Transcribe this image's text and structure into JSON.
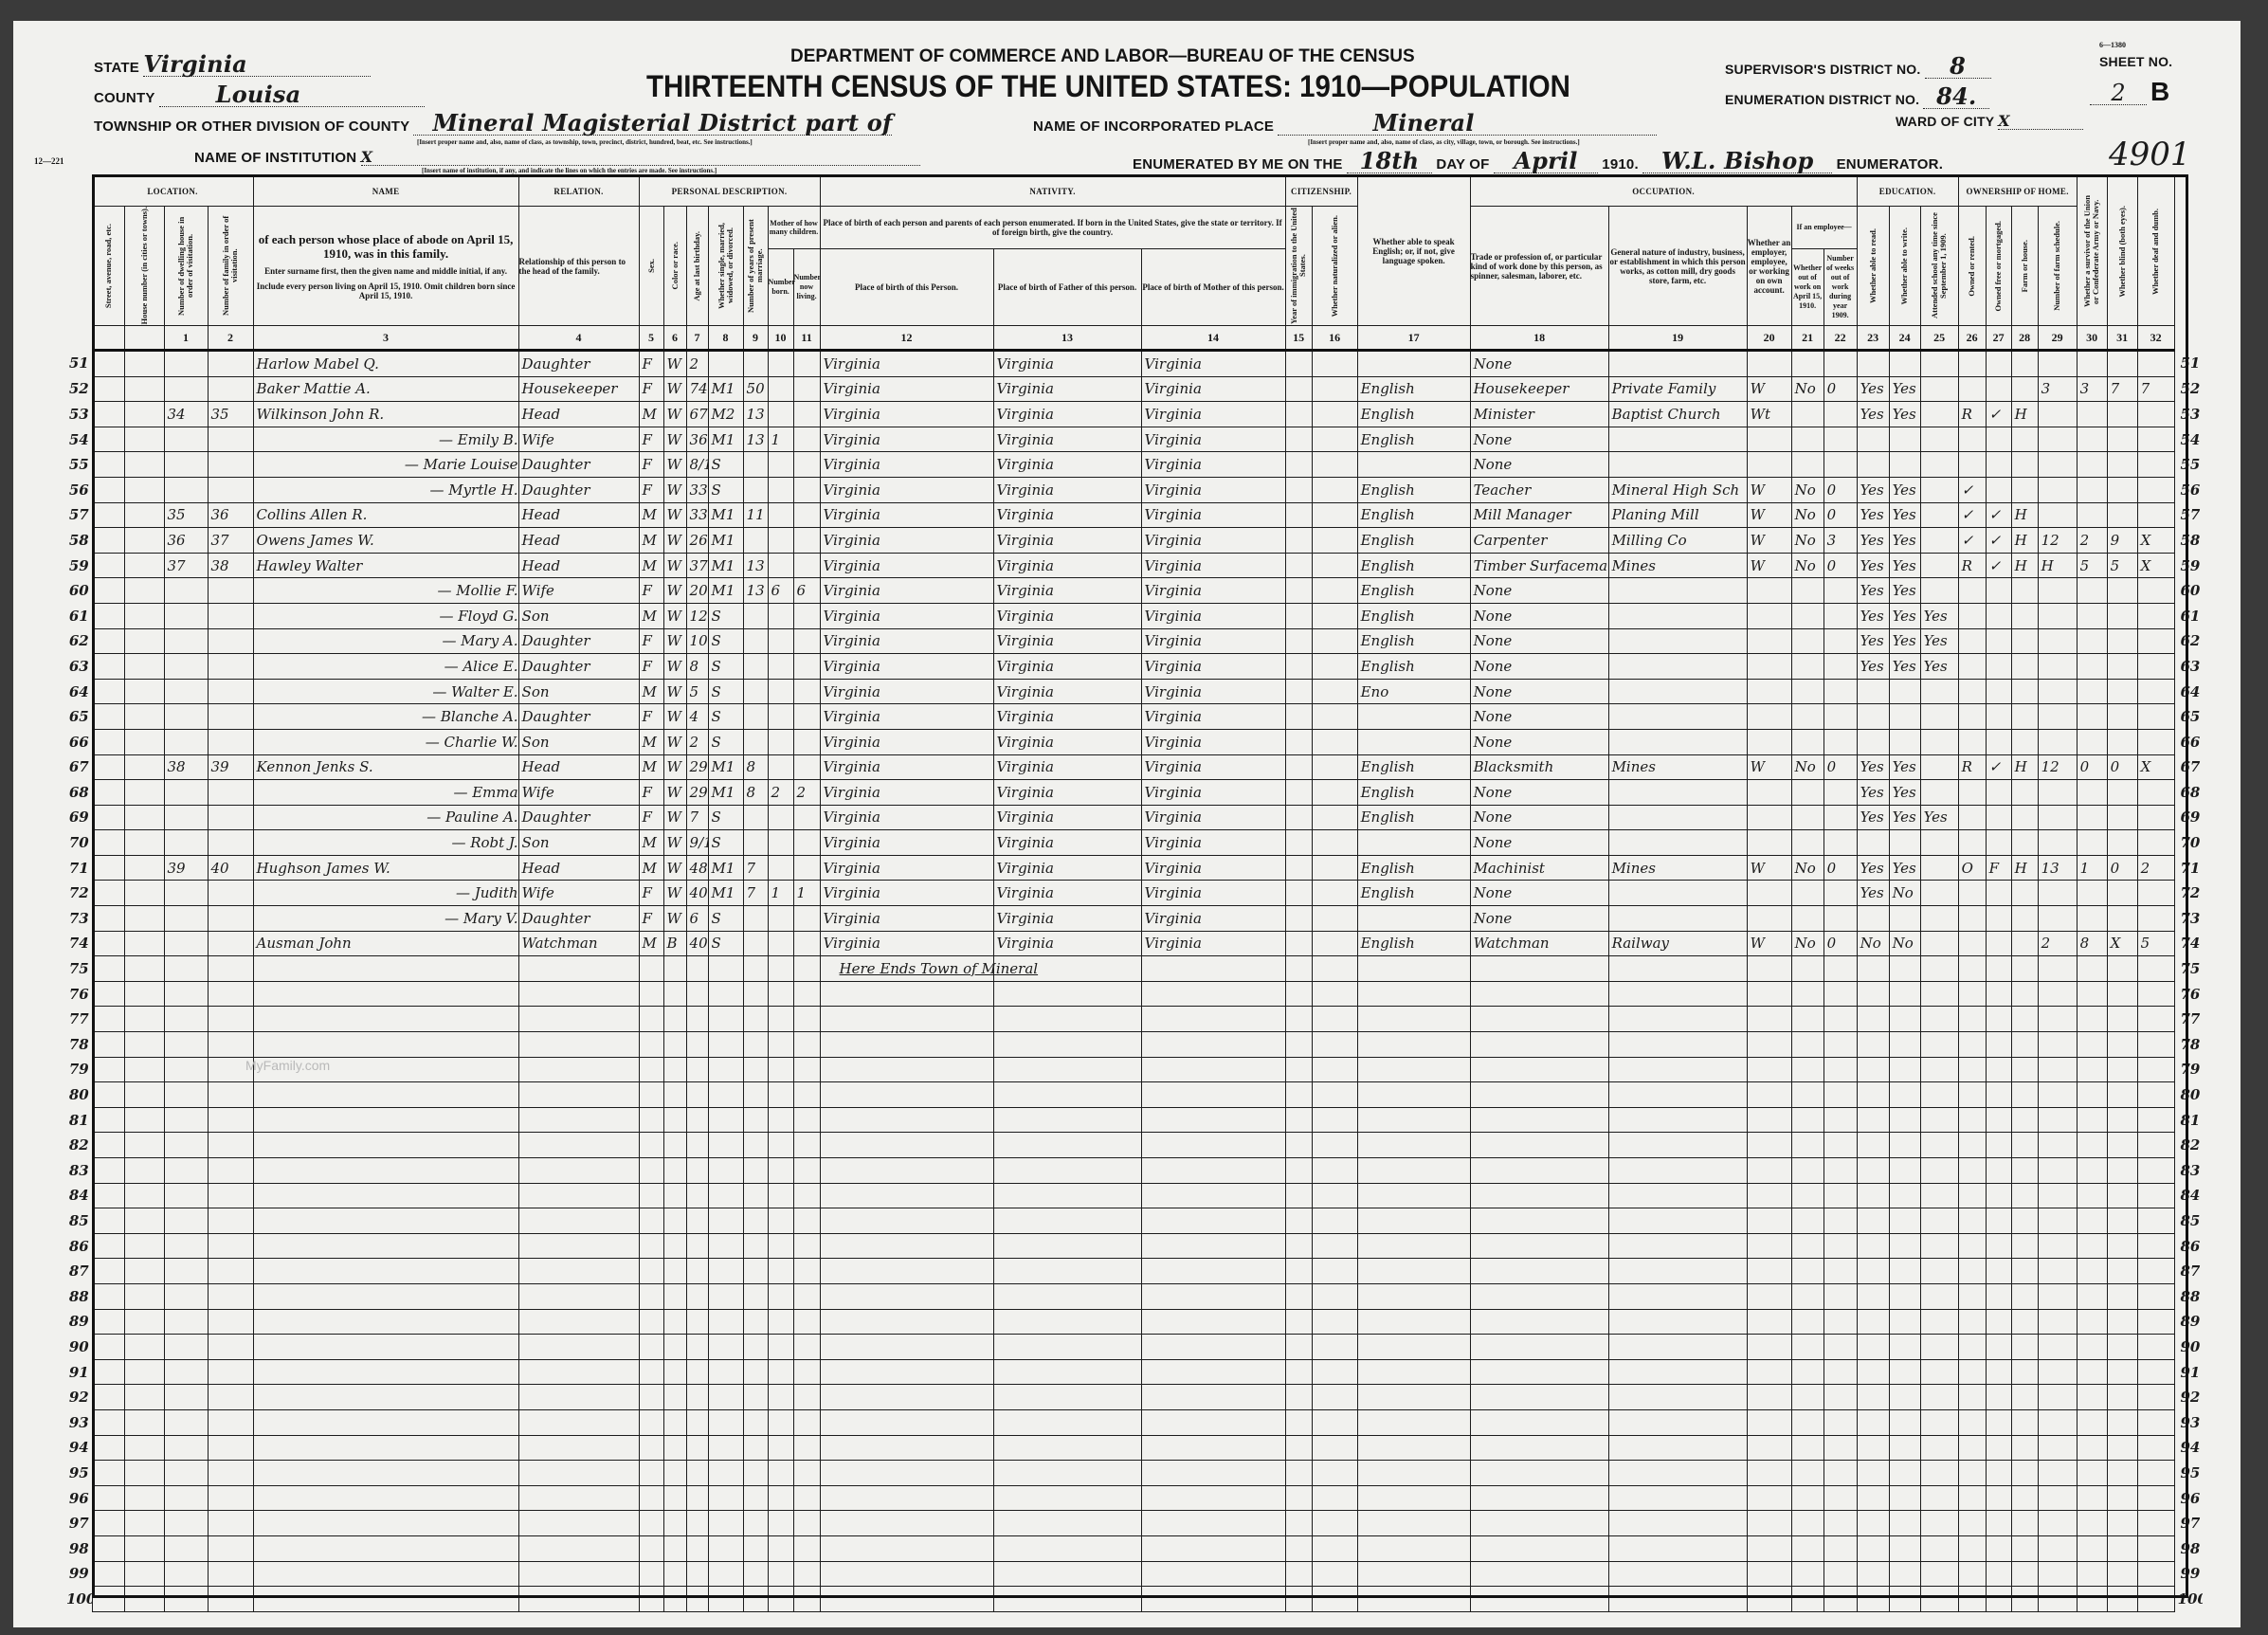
{
  "header": {
    "department": "DEPARTMENT OF COMMERCE AND LABOR—BUREAU OF THE CENSUS",
    "title": "THIRTEENTH CENSUS OF THE UNITED STATES: 1910—POPULATION",
    "form_code": "12—221",
    "state_label": "State",
    "state": "Virginia",
    "county_label": "County",
    "county": "Louisa",
    "township_label": "Township or other division of county",
    "township": "Mineral Magisterial District part of",
    "township_hint": "[Insert proper name and, also, name of class, as township, town, precinct, district, hundred, beat, etc. See instructions.]",
    "institution_label": "Name of institution",
    "institution": "X",
    "institution_hint": "[Insert name of institution, if any, and indicate the lines on which the entries are made. See instructions.]",
    "place_label": "Name of incorporated place",
    "place": "Mineral",
    "place_hint": "[Insert proper name and, also, name of class, as city, village, town, or borough. See instructions.]",
    "enumerated_label": "Enumerated by me on the",
    "day": "18th",
    "day_of_label": "day of",
    "month": "April",
    "year": "1910.",
    "enumerator": "W.L. Bishop",
    "enumerator_label": "Enumerator.",
    "supervisor_label": "Supervisor's District No.",
    "supervisor": "8",
    "enumeration_label": "Enumeration District No.",
    "enumeration": "84.",
    "sheet_label": "Sheet No.",
    "sheet": "2",
    "sheet_side": "B",
    "sheet_code": "6—1380",
    "ward_label": "Ward of city",
    "ward": "X",
    "stamp_number": "4901"
  },
  "columns": {
    "location": "LOCATION.",
    "street": "Street, avenue, road, etc.",
    "house": "House number (in cities or towns).",
    "dwelling": "Number of dwelling house in order of visitation.",
    "family": "Number of family in order of visitation.",
    "name_title": "NAME",
    "name_desc1": "of each person whose place of abode on April 15, 1910, was in this family.",
    "name_desc2": "Enter surname first, then the given name and middle initial, if any.",
    "name_desc3": "Include every person living on April 15, 1910. Omit children born since April 15, 1910.",
    "relation_title": "RELATION.",
    "relation_desc": "Relationship of this person to the head of the family.",
    "personal": "PERSONAL DESCRIPTION.",
    "sex": "Sex.",
    "color": "Color or race.",
    "age": "Age at last birthday.",
    "marital": "Whether single, married, widowed, or divorced.",
    "years_married": "Number of years of present marriage.",
    "mother": "Mother of how many children.",
    "born": "Number born.",
    "living": "Number now living.",
    "nativity": "NATIVITY.",
    "nativity_desc": "Place of birth of each person and parents of each person enumerated. If born in the United States, give the state or territory. If of foreign birth, give the country.",
    "birth_person": "Place of birth of this Person.",
    "birth_father": "Place of birth of Father of this person.",
    "birth_mother": "Place of birth of Mother of this person.",
    "citizenship": "CITIZENSHIP.",
    "immigration": "Year of immigration to the United States.",
    "naturalized": "Whether naturalized or alien.",
    "english": "Whether able to speak English; or, if not, give language spoken.",
    "occupation": "OCCUPATION.",
    "trade": "Trade or profession of, or particular kind of work done by this person, as spinner, salesman, laborer, etc.",
    "industry": "General nature of industry, business, or establishment in which this person works, as cotton mill, dry goods store, farm, etc.",
    "employer": "Whether an employer, employee, or working on own account.",
    "if_employee": "If an employee—",
    "out_of_work": "Whether out of work on April 15, 1910.",
    "weeks_out": "Number of weeks out of work during year 1909.",
    "education": "EDUCATION.",
    "read": "Whether able to read.",
    "write": "Whether able to write.",
    "school": "Attended school any time since September 1, 1909.",
    "ownership": "OWNERSHIP OF HOME.",
    "owned": "Owned or rented.",
    "free": "Owned free or mortgaged.",
    "farm": "Farm or house.",
    "schedule": "Number of farm schedule.",
    "veteran": "Whether a survivor of the Union or Confederate Army or Navy.",
    "blind": "Whether blind (both eyes).",
    "deaf": "Whether deaf and dumb."
  },
  "column_numbers": [
    "",
    "",
    "1",
    "2",
    "3",
    "4",
    "5",
    "6",
    "7",
    "8",
    "9",
    "10",
    "11",
    "12",
    "13",
    "14",
    "15",
    "16",
    "17",
    "18",
    "19",
    "20",
    "21",
    "22",
    "23",
    "24",
    "25",
    "26",
    "27",
    "28",
    "29",
    "30",
    "31",
    "32"
  ],
  "rows": [
    {
      "line": "51",
      "cells": [
        "",
        "",
        "",
        "",
        "Harlow Mabel Q.",
        "Daughter",
        "F",
        "W",
        "2",
        "",
        "",
        "",
        "",
        "Virginia",
        "Virginia",
        "Virginia",
        "",
        "",
        "",
        "None",
        "",
        "",
        "",
        "",
        "",
        "",
        "",
        "",
        "",
        "",
        "",
        "",
        "",
        ""
      ]
    },
    {
      "line": "52",
      "cells": [
        "",
        "",
        "",
        "",
        "Baker Mattie A.",
        "Housekeeper",
        "F",
        "W",
        "74",
        "M1",
        "50",
        "",
        "",
        "Virginia",
        "Virginia",
        "Virginia",
        "",
        "",
        "English",
        "Housekeeper",
        "Private Family",
        "W",
        "No",
        "0",
        "Yes",
        "Yes",
        "",
        "",
        "",
        "",
        "3",
        "3",
        "7",
        "7"
      ]
    },
    {
      "line": "53",
      "cells": [
        "",
        "",
        "34",
        "35",
        "Wilkinson John R.",
        "Head",
        "M",
        "W",
        "67",
        "M2",
        "13",
        "",
        "",
        "Virginia",
        "Virginia",
        "Virginia",
        "",
        "",
        "English",
        "Minister",
        "Baptist Church",
        "Wt",
        "",
        "",
        "Yes",
        "Yes",
        "",
        "R",
        "✓",
        "H",
        "",
        "",
        "",
        ""
      ]
    },
    {
      "line": "54",
      "cells": [
        "",
        "",
        "",
        "",
        "— Emily B.",
        "Wife",
        "F",
        "W",
        "36",
        "M1",
        "13",
        "1",
        "",
        "Virginia",
        "Virginia",
        "Virginia",
        "",
        "",
        "English",
        "None",
        "",
        "",
        "",
        "",
        "",
        "",
        "",
        "",
        "",
        "",
        "",
        "",
        "",
        ""
      ]
    },
    {
      "line": "55",
      "cells": [
        "",
        "",
        "",
        "",
        "— Marie Louise",
        "Daughter",
        "F",
        "W",
        "8/12",
        "S",
        "",
        "",
        "",
        "Virginia",
        "Virginia",
        "Virginia",
        "",
        "",
        "",
        "None",
        "",
        "",
        "",
        "",
        "",
        "",
        "",
        "",
        "",
        "",
        "",
        "",
        "",
        ""
      ]
    },
    {
      "line": "56",
      "cells": [
        "",
        "",
        "",
        "",
        "— Myrtle H.",
        "Daughter",
        "F",
        "W",
        "33",
        "S",
        "",
        "",
        "",
        "Virginia",
        "Virginia",
        "Virginia",
        "",
        "",
        "English",
        "Teacher",
        "Mineral High Sch",
        "W",
        "No",
        "0",
        "Yes",
        "Yes",
        "",
        "✓",
        "",
        "",
        "",
        "",
        "",
        ""
      ]
    },
    {
      "line": "57",
      "cells": [
        "",
        "",
        "35",
        "36",
        "Collins Allen R.",
        "Head",
        "M",
        "W",
        "33",
        "M1",
        "11",
        "",
        "",
        "Virginia",
        "Virginia",
        "Virginia",
        "",
        "",
        "English",
        "Mill Manager",
        "Planing Mill",
        "W",
        "No",
        "0",
        "Yes",
        "Yes",
        "",
        "✓",
        "✓",
        "H",
        "",
        "",
        "",
        ""
      ]
    },
    {
      "line": "58",
      "cells": [
        "",
        "",
        "36",
        "37",
        "Owens James W.",
        "Head",
        "M",
        "W",
        "26",
        "M1",
        "",
        "",
        "",
        "Virginia",
        "Virginia",
        "Virginia",
        "",
        "",
        "English",
        "Carpenter",
        "Milling Co",
        "W",
        "No",
        "3",
        "Yes",
        "Yes",
        "",
        "✓",
        "✓",
        "H",
        "12",
        "2",
        "9",
        "X"
      ]
    },
    {
      "line": "59",
      "cells": [
        "",
        "",
        "37",
        "38",
        "Hawley Walter",
        "Head",
        "M",
        "W",
        "37",
        "M1",
        "13",
        "",
        "",
        "Virginia",
        "Virginia",
        "Virginia",
        "",
        "",
        "English",
        "Timber Surfaceman",
        "Mines",
        "W",
        "No",
        "0",
        "Yes",
        "Yes",
        "",
        "R",
        "✓",
        "H",
        "H",
        "5",
        "5",
        "X"
      ]
    },
    {
      "line": "60",
      "cells": [
        "",
        "",
        "",
        "",
        "— Mollie F.",
        "Wife",
        "F",
        "W",
        "20",
        "M1",
        "13",
        "6",
        "6",
        "Virginia",
        "Virginia",
        "Virginia",
        "",
        "",
        "English",
        "None",
        "",
        "",
        "",
        "",
        "Yes",
        "Yes",
        "",
        "",
        "",
        "",
        "",
        "",
        "",
        ""
      ]
    },
    {
      "line": "61",
      "cells": [
        "",
        "",
        "",
        "",
        "— Floyd G.",
        "Son",
        "M",
        "W",
        "12",
        "S",
        "",
        "",
        "",
        "Virginia",
        "Virginia",
        "Virginia",
        "",
        "",
        "English",
        "None",
        "",
        "",
        "",
        "",
        "Yes",
        "Yes",
        "Yes",
        "",
        "",
        "",
        "",
        "",
        "",
        ""
      ]
    },
    {
      "line": "62",
      "cells": [
        "",
        "",
        "",
        "",
        "— Mary A.",
        "Daughter",
        "F",
        "W",
        "10",
        "S",
        "",
        "",
        "",
        "Virginia",
        "Virginia",
        "Virginia",
        "",
        "",
        "English",
        "None",
        "",
        "",
        "",
        "",
        "Yes",
        "Yes",
        "Yes",
        "",
        "",
        "",
        "",
        "",
        "",
        ""
      ]
    },
    {
      "line": "63",
      "cells": [
        "",
        "",
        "",
        "",
        "— Alice E.",
        "Daughter",
        "F",
        "W",
        "8",
        "S",
        "",
        "",
        "",
        "Virginia",
        "Virginia",
        "Virginia",
        "",
        "",
        "English",
        "None",
        "",
        "",
        "",
        "",
        "Yes",
        "Yes",
        "Yes",
        "",
        "",
        "",
        "",
        "",
        "",
        ""
      ]
    },
    {
      "line": "64",
      "cells": [
        "",
        "",
        "",
        "",
        "— Walter E.",
        "Son",
        "M",
        "W",
        "5",
        "S",
        "",
        "",
        "",
        "Virginia",
        "Virginia",
        "Virginia",
        "",
        "",
        "Eno",
        "None",
        "",
        "",
        "",
        "",
        "",
        "",
        "",
        "",
        "",
        "",
        "",
        "",
        "",
        ""
      ]
    },
    {
      "line": "65",
      "cells": [
        "",
        "",
        "",
        "",
        "— Blanche A.",
        "Daughter",
        "F",
        "W",
        "4",
        "S",
        "",
        "",
        "",
        "Virginia",
        "Virginia",
        "Virginia",
        "",
        "",
        "",
        "None",
        "",
        "",
        "",
        "",
        "",
        "",
        "",
        "",
        "",
        "",
        "",
        "",
        "",
        ""
      ]
    },
    {
      "line": "66",
      "cells": [
        "",
        "",
        "",
        "",
        "— Charlie W.",
        "Son",
        "M",
        "W",
        "2",
        "S",
        "",
        "",
        "",
        "Virginia",
        "Virginia",
        "Virginia",
        "",
        "",
        "",
        "None",
        "",
        "",
        "",
        "",
        "",
        "",
        "",
        "",
        "",
        "",
        "",
        "",
        "",
        ""
      ]
    },
    {
      "line": "67",
      "cells": [
        "",
        "",
        "38",
        "39",
        "Kennon Jenks S.",
        "Head",
        "M",
        "W",
        "29",
        "M1",
        "8",
        "",
        "",
        "Virginia",
        "Virginia",
        "Virginia",
        "",
        "",
        "English",
        "Blacksmith",
        "Mines",
        "W",
        "No",
        "0",
        "Yes",
        "Yes",
        "",
        "R",
        "✓",
        "H",
        "12",
        "0",
        "0",
        "X"
      ]
    },
    {
      "line": "68",
      "cells": [
        "",
        "",
        "",
        "",
        "— Emma",
        "Wife",
        "F",
        "W",
        "29",
        "M1",
        "8",
        "2",
        "2",
        "Virginia",
        "Virginia",
        "Virginia",
        "",
        "",
        "English",
        "None",
        "",
        "",
        "",
        "",
        "Yes",
        "Yes",
        "",
        "",
        "",
        "",
        "",
        "",
        "",
        ""
      ]
    },
    {
      "line": "69",
      "cells": [
        "",
        "",
        "",
        "",
        "— Pauline A.",
        "Daughter",
        "F",
        "W",
        "7",
        "S",
        "",
        "",
        "",
        "Virginia",
        "Virginia",
        "Virginia",
        "",
        "",
        "English",
        "None",
        "",
        "",
        "",
        "",
        "Yes",
        "Yes",
        "Yes",
        "",
        "",
        "",
        "",
        "",
        "",
        ""
      ]
    },
    {
      "line": "70",
      "cells": [
        "",
        "",
        "",
        "",
        "— Robt J.",
        "Son",
        "M",
        "W",
        "9/12",
        "S",
        "",
        "",
        "",
        "Virginia",
        "Virginia",
        "Virginia",
        "",
        "",
        "",
        "None",
        "",
        "",
        "",
        "",
        "",
        "",
        "",
        "",
        "",
        "",
        "",
        "",
        "",
        ""
      ]
    },
    {
      "line": "71",
      "cells": [
        "",
        "",
        "39",
        "40",
        "Hughson James W.",
        "Head",
        "M",
        "W",
        "48",
        "M1",
        "7",
        "",
        "",
        "Virginia",
        "Virginia",
        "Virginia",
        "",
        "",
        "English",
        "Machinist",
        "Mines",
        "W",
        "No",
        "0",
        "Yes",
        "Yes",
        "",
        "O",
        "F",
        "H",
        "13",
        "1",
        "0",
        "2"
      ]
    },
    {
      "line": "72",
      "cells": [
        "",
        "",
        "",
        "",
        "— Judith",
        "Wife",
        "F",
        "W",
        "40",
        "M1",
        "7",
        "1",
        "1",
        "Virginia",
        "Virginia",
        "Virginia",
        "",
        "",
        "English",
        "None",
        "",
        "",
        "",
        "",
        "Yes",
        "No",
        "",
        "",
        "",
        "",
        "",
        "",
        "",
        ""
      ]
    },
    {
      "line": "73",
      "cells": [
        "",
        "",
        "",
        "",
        "— Mary V.",
        "Daughter",
        "F",
        "W",
        "6",
        "S",
        "",
        "",
        "",
        "Virginia",
        "Virginia",
        "Virginia",
        "",
        "",
        "",
        "None",
        "",
        "",
        "",
        "",
        "",
        "",
        "",
        "",
        "",
        "",
        "",
        "",
        "",
        ""
      ]
    },
    {
      "line": "74",
      "cells": [
        "",
        "",
        "",
        "",
        "Ausman John",
        "Watchman",
        "M",
        "B",
        "40",
        "S",
        "",
        "",
        "",
        "Virginia",
        "Virginia",
        "Virginia",
        "",
        "",
        "English",
        "Watchman",
        "Railway",
        "W",
        "No",
        "0",
        "No",
        "No",
        "",
        "",
        "",
        "",
        "2",
        "8",
        "X",
        "5"
      ]
    },
    {
      "line": "75",
      "note": "Here Ends Town of Mineral"
    },
    {
      "line": "76"
    },
    {
      "line": "77"
    },
    {
      "line": "78"
    },
    {
      "line": "79"
    },
    {
      "line": "80"
    },
    {
      "line": "81"
    },
    {
      "line": "82"
    },
    {
      "line": "83"
    },
    {
      "line": "84"
    },
    {
      "line": "85"
    },
    {
      "line": "86"
    },
    {
      "line": "87"
    },
    {
      "line": "88"
    },
    {
      "line": "89"
    },
    {
      "line": "90"
    },
    {
      "line": "91"
    },
    {
      "line": "92"
    },
    {
      "line": "93"
    },
    {
      "line": "94"
    },
    {
      "line": "95"
    },
    {
      "line": "96"
    },
    {
      "line": "97"
    },
    {
      "line": "98"
    },
    {
      "line": "99"
    },
    {
      "line": "100"
    }
  ],
  "watermark": "MyFamily.com"
}
